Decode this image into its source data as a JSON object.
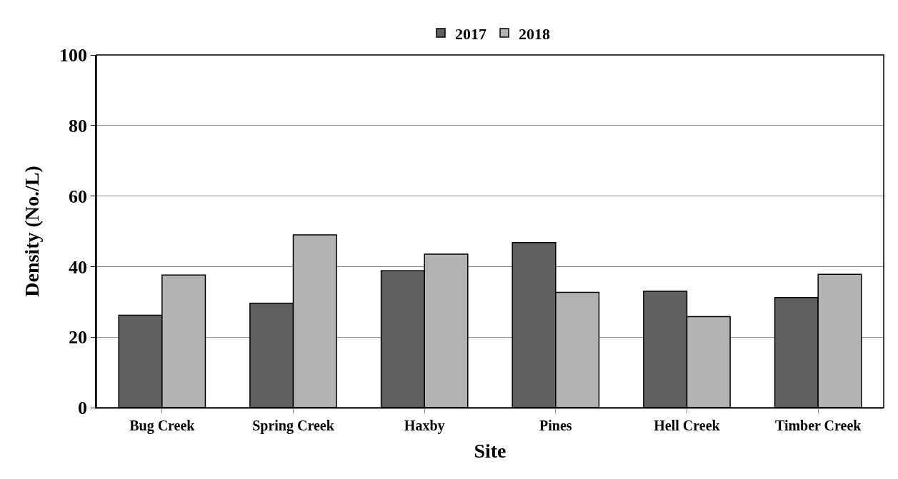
{
  "chart_data": {
    "type": "bar",
    "xlabel": "Site",
    "ylabel": "Density (No./L)",
    "categories": [
      "Bug Creek",
      "Spring Creek",
      "Haxby",
      "Pines",
      "Hell Creek",
      "Timber Creek"
    ],
    "series": [
      {
        "name": "2017",
        "color": "#606060",
        "values": [
          26.2,
          29.6,
          38.8,
          46.8,
          33,
          31.2
        ]
      },
      {
        "name": "2018",
        "color": "#b3b3b3",
        "values": [
          37.6,
          49,
          43.5,
          32.7,
          25.8,
          37.8
        ]
      }
    ],
    "ylim": [
      0,
      100
    ],
    "yticks": [
      0,
      20,
      40,
      60,
      80,
      100
    ],
    "grid": "y",
    "legend": "top"
  }
}
